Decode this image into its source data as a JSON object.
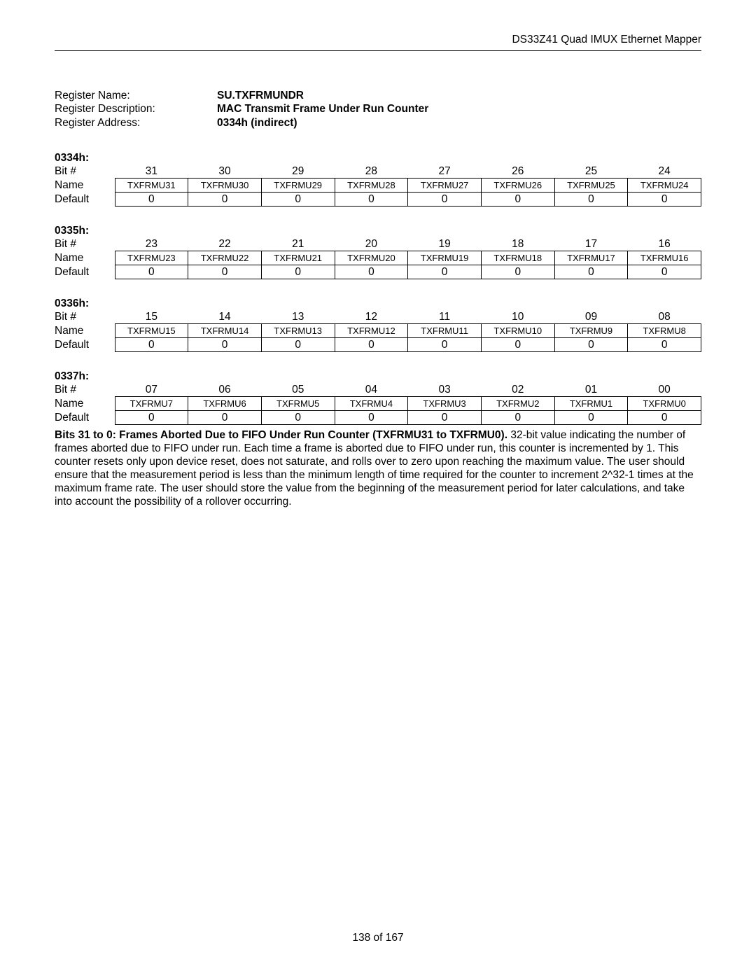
{
  "header": {
    "product": "DS33Z41 Quad IMUX Ethernet Mapper"
  },
  "register": {
    "name_label": "Register Name:",
    "name_value": "SU.TXFRMUNDR",
    "desc_label": "Register Description:",
    "desc_value": "MAC Transmit Frame Under Run Counter",
    "addr_label": "Register Address:",
    "addr_value": "0334h (indirect)"
  },
  "row_labels": {
    "bit": "Bit #",
    "name": "Name",
    "default": "Default"
  },
  "bytes": [
    {
      "addr": "0334h:",
      "bits": [
        "31",
        "30",
        "29",
        "28",
        "27",
        "26",
        "25",
        "24"
      ],
      "names": [
        "TXFRMU31",
        "TXFRMU30",
        "TXFRMU29",
        "TXFRMU28",
        "TXFRMU27",
        "TXFRMU26",
        "TXFRMU25",
        "TXFRMU24"
      ],
      "defaults": [
        "0",
        "0",
        "0",
        "0",
        "0",
        "0",
        "0",
        "0"
      ]
    },
    {
      "addr": "0335h:",
      "bits": [
        "23",
        "22",
        "21",
        "20",
        "19",
        "18",
        "17",
        "16"
      ],
      "names": [
        "TXFRMU23",
        "TXFRMU22",
        "TXFRMU21",
        "TXFRMU20",
        "TXFRMU19",
        "TXFRMU18",
        "TXFRMU17",
        "TXFRMU16"
      ],
      "defaults": [
        "0",
        "0",
        "0",
        "0",
        "0",
        "0",
        "0",
        "0"
      ]
    },
    {
      "addr": "0336h:",
      "bits": [
        "15",
        "14",
        "13",
        "12",
        "11",
        "10",
        "09",
        "08"
      ],
      "names": [
        "TXFRMU15",
        "TXFRMU14",
        "TXFRMU13",
        "TXFRMU12",
        "TXFRMU11",
        "TXFRMU10",
        "TXFRMU9",
        "TXFRMU8"
      ],
      "defaults": [
        "0",
        "0",
        "0",
        "0",
        "0",
        "0",
        "0",
        "0"
      ]
    },
    {
      "addr": "0337h:",
      "bits": [
        "07",
        "06",
        "05",
        "04",
        "03",
        "02",
        "01",
        "00"
      ],
      "names": [
        "TXFRMU7",
        "TXFRMU6",
        "TXFRMU5",
        "TXFRMU4",
        "TXFRMU3",
        "TXFRMU2",
        "TXFRMU1",
        "TXFRMU0"
      ],
      "defaults": [
        "0",
        "0",
        "0",
        "0",
        "0",
        "0",
        "0",
        "0"
      ]
    }
  ],
  "description": {
    "bold_lead": "Bits 31 to 0: Frames Aborted Due to FIFO Under Run Counter (TXFRMU31 to TXFRMU0).",
    "body": " 32-bit value indicating the number of frames aborted due to FIFO under run. Each time a frame is aborted due to FIFO under run, this counter is incremented by 1. This counter resets only upon device reset, does not saturate, and rolls over to zero upon reaching the maximum value. The user should ensure that the measurement period is less than the minimum length of time required for the counter to increment 2^32-1 times at the maximum frame rate. The user should store the value from the beginning of the measurement period for later calculations, and take into account the possibility of a rollover occurring."
  },
  "footer": {
    "page": "138 of 167"
  }
}
